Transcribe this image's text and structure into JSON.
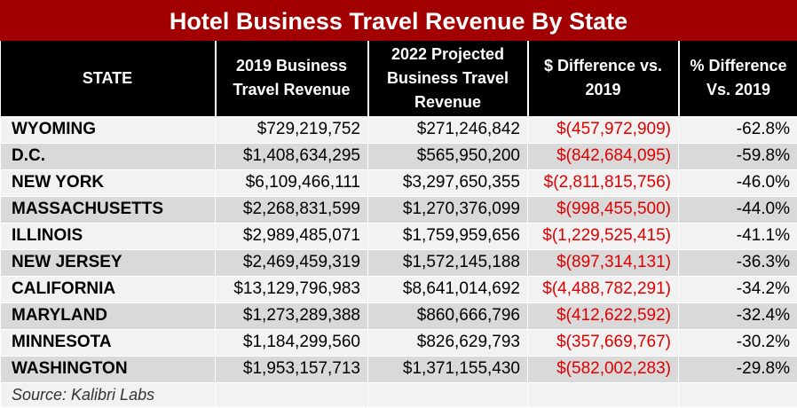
{
  "title": "Hotel Business Travel Revenue By State",
  "headers": {
    "state": "STATE",
    "rev2019": "2019 Business Travel Revenue",
    "rev2022": "2022 Projected Business Travel Revenue",
    "diff": "$ Difference vs. 2019",
    "pct": "% Difference Vs. 2019"
  },
  "rows": [
    {
      "state": "WYOMING",
      "rev2019": "$729,219,752",
      "rev2022": "$271,246,842",
      "diff": "$(457,972,909)",
      "pct": "-62.8%"
    },
    {
      "state": "D.C.",
      "rev2019": "$1,408,634,295",
      "rev2022": "$565,950,200",
      "diff": "$(842,684,095)",
      "pct": "-59.8%"
    },
    {
      "state": "NEW YORK",
      "rev2019": "$6,109,466,111",
      "rev2022": "$3,297,650,355",
      "diff": "$(2,811,815,756)",
      "pct": "-46.0%"
    },
    {
      "state": "MASSACHUSETTS",
      "rev2019": "$2,268,831,599",
      "rev2022": "$1,270,376,099",
      "diff": "$(998,455,500)",
      "pct": "-44.0%"
    },
    {
      "state": "ILLINOIS",
      "rev2019": "$2,989,485,071",
      "rev2022": "$1,759,959,656",
      "diff": "$(1,229,525,415)",
      "pct": "-41.1%"
    },
    {
      "state": "NEW JERSEY",
      "rev2019": "$2,469,459,319",
      "rev2022": "$1,572,145,188",
      "diff": "$(897,314,131)",
      "pct": "-36.3%"
    },
    {
      "state": "CALIFORNIA",
      "rev2019": "$13,129,796,983",
      "rev2022": "$8,641,014,692",
      "diff": "$(4,488,782,291)",
      "pct": "-34.2%"
    },
    {
      "state": "MARYLAND",
      "rev2019": "$1,273,289,388",
      "rev2022": "$860,666,796",
      "diff": "$(412,622,592)",
      "pct": "-32.4%"
    },
    {
      "state": "MINNESOTA",
      "rev2019": "$1,184,299,560",
      "rev2022": "$826,629,793",
      "diff": "$(357,669,767)",
      "pct": "-30.2%"
    },
    {
      "state": "WASHINGTON",
      "rev2019": "$1,953,157,713",
      "rev2022": "$1,371,155,430",
      "diff": "$(582,002,283)",
      "pct": "-29.8%"
    }
  ],
  "source": "Source: Kalibri Labs",
  "colors": {
    "title_bg": "#a20000",
    "header_bg": "#000000",
    "negative": "#e00000"
  }
}
